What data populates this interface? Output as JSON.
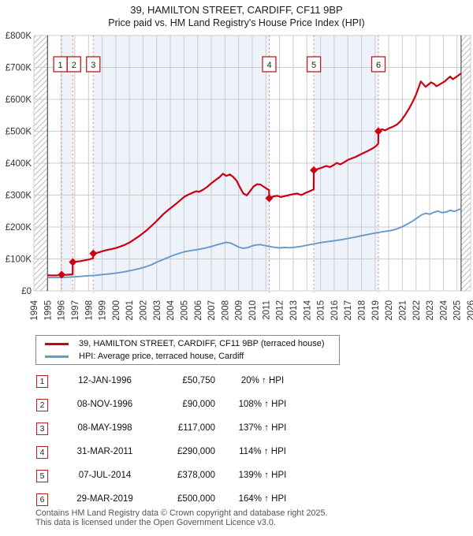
{
  "chart_data": {
    "type": "line",
    "title": "39, HAMILTON STREET, CARDIFF, CF11 9BP",
    "subtitle": "Price paid vs. HM Land Registry's House Price Index (HPI)",
    "x_range": [
      1994,
      2026
    ],
    "y_range_gbp": [
      0,
      800000
    ],
    "values_unit": "GBP_thousands",
    "grid": true,
    "y_tick_labels": [
      "£0",
      "£100K",
      "£200K",
      "£300K",
      "£400K",
      "£500K",
      "£600K",
      "£700K",
      "£800K"
    ],
    "x_tick_labels": [
      "1994",
      "1995",
      "1996",
      "1997",
      "1998",
      "1999",
      "2000",
      "2001",
      "2002",
      "2003",
      "2004",
      "2005",
      "2006",
      "2007",
      "2008",
      "2009",
      "2010",
      "2011",
      "2012",
      "2013",
      "2014",
      "2015",
      "2016",
      "2017",
      "2018",
      "2019",
      "2020",
      "2021",
      "2022",
      "2023",
      "2024",
      "2025",
      "2026"
    ],
    "hpi_span": [
      1995.0,
      2025.3
    ],
    "owned_bands": [
      [
        1996.03,
        1996.85
      ],
      [
        1998.35,
        2011.24
      ],
      [
        2014.51,
        2019.24
      ]
    ],
    "colors": {
      "price_line": "#cc0011",
      "hpi_line": "#6699cc",
      "sale_dash": "#f08080",
      "band": "#eef2fb",
      "grid": "#cccccc",
      "hatch": "#bbbbbb",
      "hatch_edge": "#555555",
      "axis_text": "#333333",
      "box_border": "#b52020"
    },
    "series": [
      {
        "name": "39, HAMILTON STREET, CARDIFF, CF11 9BP (terraced house)",
        "color": "#cc0011",
        "points": [
          [
            1995.0,
            49
          ],
          [
            1995.25,
            48.5
          ],
          [
            1995.5,
            48.2
          ],
          [
            1995.75,
            49
          ],
          [
            1996.03,
            50.75
          ],
          [
            1996.3,
            50.2
          ],
          [
            1996.6,
            50.8
          ],
          [
            1996.84,
            51.5
          ],
          [
            1996.85,
            90
          ],
          [
            1997.1,
            91.5
          ],
          [
            1997.4,
            93
          ],
          [
            1997.7,
            95.5
          ],
          [
            1998.0,
            98
          ],
          [
            1998.34,
            102
          ],
          [
            1998.35,
            117
          ],
          [
            1998.7,
            120
          ],
          [
            1999.0,
            124
          ],
          [
            1999.35,
            128
          ],
          [
            1999.7,
            131
          ],
          [
            2000.0,
            134
          ],
          [
            2000.35,
            139
          ],
          [
            2000.7,
            145
          ],
          [
            2001.0,
            151
          ],
          [
            2001.35,
            161
          ],
          [
            2001.7,
            171
          ],
          [
            2002.0,
            181
          ],
          [
            2002.3,
            191
          ],
          [
            2002.6,
            203
          ],
          [
            2002.9,
            215
          ],
          [
            2003.2,
            228
          ],
          [
            2003.5,
            241
          ],
          [
            2003.8,
            252
          ],
          [
            2004.1,
            262
          ],
          [
            2004.4,
            272
          ],
          [
            2004.7,
            283
          ],
          [
            2005.0,
            294
          ],
          [
            2005.3,
            301
          ],
          [
            2005.6,
            307
          ],
          [
            2005.9,
            312
          ],
          [
            2006.1,
            310
          ],
          [
            2006.4,
            317
          ],
          [
            2006.7,
            326
          ],
          [
            2007.0,
            337
          ],
          [
            2007.3,
            347
          ],
          [
            2007.6,
            356
          ],
          [
            2007.85,
            367
          ],
          [
            2008.1,
            360
          ],
          [
            2008.35,
            365
          ],
          [
            2008.6,
            357
          ],
          [
            2008.85,
            345
          ],
          [
            2009.1,
            324
          ],
          [
            2009.35,
            305
          ],
          [
            2009.6,
            299
          ],
          [
            2009.85,
            313
          ],
          [
            2010.1,
            327
          ],
          [
            2010.35,
            334
          ],
          [
            2010.6,
            333
          ],
          [
            2010.85,
            326
          ],
          [
            2011.1,
            319
          ],
          [
            2011.23,
            316
          ],
          [
            2011.25,
            290
          ],
          [
            2011.5,
            295
          ],
          [
            2011.8,
            298
          ],
          [
            2012.1,
            294
          ],
          [
            2012.4,
            297
          ],
          [
            2012.7,
            300
          ],
          [
            2013.0,
            303
          ],
          [
            2013.3,
            305
          ],
          [
            2013.6,
            300
          ],
          [
            2013.9,
            307
          ],
          [
            2014.2,
            312
          ],
          [
            2014.5,
            318
          ],
          [
            2014.51,
            378
          ],
          [
            2014.8,
            382
          ],
          [
            2015.1,
            386
          ],
          [
            2015.4,
            391
          ],
          [
            2015.7,
            388
          ],
          [
            2016.0,
            395
          ],
          [
            2016.2,
            401
          ],
          [
            2016.45,
            396
          ],
          [
            2016.7,
            402
          ],
          [
            2017.0,
            410
          ],
          [
            2017.3,
            415
          ],
          [
            2017.6,
            420
          ],
          [
            2017.9,
            427
          ],
          [
            2018.2,
            433
          ],
          [
            2018.5,
            439
          ],
          [
            2018.8,
            446
          ],
          [
            2019.05,
            453
          ],
          [
            2019.23,
            461
          ],
          [
            2019.24,
            500
          ],
          [
            2019.5,
            506
          ],
          [
            2019.75,
            503
          ],
          [
            2020.0,
            509
          ],
          [
            2020.3,
            514
          ],
          [
            2020.6,
            521
          ],
          [
            2020.9,
            533
          ],
          [
            2021.2,
            551
          ],
          [
            2021.5,
            572
          ],
          [
            2021.8,
            596
          ],
          [
            2022.0,
            615
          ],
          [
            2022.2,
            638
          ],
          [
            2022.35,
            656
          ],
          [
            2022.5,
            649
          ],
          [
            2022.7,
            639
          ],
          [
            2022.9,
            646
          ],
          [
            2023.1,
            653
          ],
          [
            2023.3,
            649
          ],
          [
            2023.5,
            641
          ],
          [
            2023.7,
            646
          ],
          [
            2023.9,
            651
          ],
          [
            2024.1,
            656
          ],
          [
            2024.3,
            664
          ],
          [
            2024.5,
            671
          ],
          [
            2024.7,
            663
          ],
          [
            2024.9,
            669
          ],
          [
            2025.1,
            675
          ],
          [
            2025.3,
            681
          ]
        ]
      },
      {
        "name": "HPI: Average price, terraced house, Cardiff",
        "color": "#6699cc",
        "points": [
          [
            1995.0,
            42
          ],
          [
            1995.4,
            41.6
          ],
          [
            1995.8,
            42
          ],
          [
            1996.2,
            42.5
          ],
          [
            1996.6,
            43
          ],
          [
            1997.0,
            44
          ],
          [
            1997.4,
            45.2
          ],
          [
            1997.8,
            46.6
          ],
          [
            1998.2,
            47.6
          ],
          [
            1998.6,
            49
          ],
          [
            1999.0,
            51
          ],
          [
            1999.4,
            52.7
          ],
          [
            1999.8,
            54.5
          ],
          [
            2000.2,
            56.5
          ],
          [
            2000.6,
            59.5
          ],
          [
            2001.0,
            63
          ],
          [
            2001.4,
            66.5
          ],
          [
            2001.8,
            70.5
          ],
          [
            2002.2,
            75.5
          ],
          [
            2002.6,
            81.5
          ],
          [
            2003.0,
            90
          ],
          [
            2003.4,
            97
          ],
          [
            2003.8,
            104
          ],
          [
            2004.2,
            111
          ],
          [
            2004.6,
            117
          ],
          [
            2005.0,
            122
          ],
          [
            2005.4,
            125.5
          ],
          [
            2005.8,
            128
          ],
          [
            2006.2,
            131
          ],
          [
            2006.6,
            134.5
          ],
          [
            2007.0,
            139
          ],
          [
            2007.4,
            144
          ],
          [
            2007.8,
            149
          ],
          [
            2008.1,
            152
          ],
          [
            2008.4,
            150
          ],
          [
            2008.7,
            144
          ],
          [
            2009.0,
            137
          ],
          [
            2009.35,
            133
          ],
          [
            2009.7,
            136
          ],
          [
            2010.0,
            141
          ],
          [
            2010.3,
            144
          ],
          [
            2010.6,
            145
          ],
          [
            2010.9,
            142
          ],
          [
            2011.25,
            139
          ],
          [
            2011.6,
            136.5
          ],
          [
            2012.0,
            134.5
          ],
          [
            2012.4,
            136
          ],
          [
            2012.8,
            135
          ],
          [
            2013.2,
            137
          ],
          [
            2013.6,
            139.5
          ],
          [
            2014.0,
            143
          ],
          [
            2014.5,
            147
          ],
          [
            2015.0,
            151
          ],
          [
            2015.5,
            154
          ],
          [
            2016.0,
            157
          ],
          [
            2016.5,
            160
          ],
          [
            2017.0,
            164
          ],
          [
            2017.5,
            168
          ],
          [
            2018.0,
            172.5
          ],
          [
            2018.5,
            177
          ],
          [
            2019.0,
            181
          ],
          [
            2019.4,
            184
          ],
          [
            2019.8,
            187
          ],
          [
            2020.2,
            189.5
          ],
          [
            2020.6,
            194
          ],
          [
            2021.0,
            201
          ],
          [
            2021.4,
            210
          ],
          [
            2021.8,
            220
          ],
          [
            2022.1,
            229
          ],
          [
            2022.4,
            238
          ],
          [
            2022.7,
            243
          ],
          [
            2023.0,
            240
          ],
          [
            2023.3,
            246
          ],
          [
            2023.6,
            250
          ],
          [
            2023.9,
            245
          ],
          [
            2024.2,
            247
          ],
          [
            2024.5,
            252
          ],
          [
            2024.8,
            249
          ],
          [
            2025.1,
            254
          ],
          [
            2025.3,
            257
          ]
        ]
      }
    ],
    "sales": [
      {
        "n": "1",
        "date": "12-JAN-1996",
        "year": 1996.03,
        "price": 50750,
        "price_label": "£50,750",
        "hpi_label": "20% ↑ HPI"
      },
      {
        "n": "2",
        "date": "08-NOV-1996",
        "year": 1996.85,
        "price": 90000,
        "price_label": "£90,000",
        "hpi_label": "108% ↑ HPI"
      },
      {
        "n": "3",
        "date": "08-MAY-1998",
        "year": 1998.35,
        "price": 117000,
        "price_label": "£117,000",
        "hpi_label": "137% ↑ HPI"
      },
      {
        "n": "4",
        "date": "31-MAR-2011",
        "year": 2011.24,
        "price": 290000,
        "price_label": "£290,000",
        "hpi_label": "114% ↑ HPI"
      },
      {
        "n": "5",
        "date": "07-JUL-2014",
        "year": 2014.51,
        "price": 378000,
        "price_label": "£378,000",
        "hpi_label": "139% ↑ HPI"
      },
      {
        "n": "6",
        "date": "29-MAR-2019",
        "year": 2019.24,
        "price": 500000,
        "price_label": "£500,000",
        "hpi_label": "164% ↑ HPI"
      }
    ]
  },
  "footer": {
    "line1": "Contains HM Land Registry data © Crown copyright and database right 2025.",
    "line2": "This data is licensed under the Open Government Licence v3.0."
  }
}
